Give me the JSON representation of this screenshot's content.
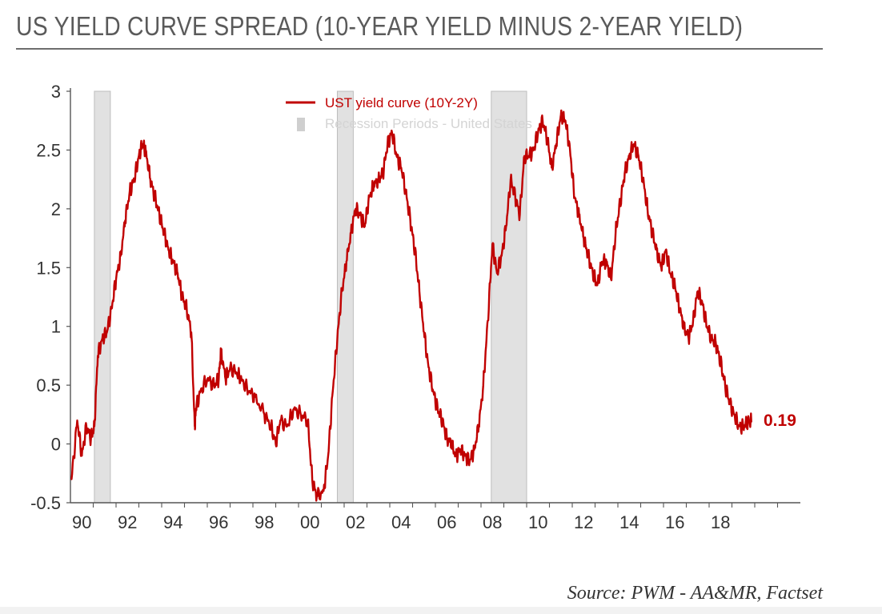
{
  "title": "US YIELD CURVE SPREAD (10-YEAR YIELD MINUS 2-YEAR YIELD)",
  "source": "Source: PWM - AA&MR, Factset",
  "colors": {
    "line": "#c00000",
    "recession": "#e1e1e1",
    "axis": "#555555",
    "text": "#333333"
  },
  "chart_data": {
    "type": "line",
    "title": "US YIELD CURVE SPREAD (10-YEAR YIELD MINUS 2-YEAR YIELD)",
    "xlabel": "",
    "ylabel": "",
    "xlim": [
      1989.5,
      2021.5
    ],
    "ylim": [
      -0.5,
      3
    ],
    "yticks": [
      -0.5,
      0,
      0.5,
      1,
      1.5,
      2,
      2.5,
      3
    ],
    "ytick_labels": [
      "-0.5",
      "0",
      "0.5",
      "1",
      "1.5",
      "2",
      "2.5",
      "3"
    ],
    "xticks": [
      1990,
      1992,
      1994,
      1996,
      1998,
      2000,
      2002,
      2004,
      2006,
      2008,
      2010,
      2012,
      2014,
      2016,
      2018
    ],
    "xtick_labels": [
      "90",
      "92",
      "94",
      "96",
      "98",
      "00",
      "02",
      "04",
      "06",
      "08",
      "10",
      "12",
      "14",
      "16",
      "18"
    ],
    "legend": {
      "position": "top-center",
      "entries": [
        {
          "label": "UST yield curve (10Y-2Y)",
          "kind": "line"
        },
        {
          "label": "Recession Periods - United States",
          "kind": "bar"
        }
      ]
    },
    "recessions": [
      {
        "start": 1990.55,
        "end": 1991.25
      },
      {
        "start": 2001.2,
        "end": 2001.9
      },
      {
        "start": 2007.95,
        "end": 2009.5
      }
    ],
    "series": [
      {
        "name": "UST yield curve (10Y-2Y)",
        "x": [
          1989.55,
          1989.8,
          1990.0,
          1990.2,
          1990.4,
          1990.55,
          1990.7,
          1990.9,
          1991.1,
          1991.3,
          1991.5,
          1991.7,
          1991.9,
          1992.1,
          1992.3,
          1992.5,
          1992.65,
          1992.8,
          1993.0,
          1993.2,
          1993.4,
          1993.6,
          1993.8,
          1994.0,
          1994.2,
          1994.4,
          1994.6,
          1994.8,
          1994.95,
          1995.0,
          1995.2,
          1995.5,
          1995.8,
          1996.0,
          1996.1,
          1996.3,
          1996.5,
          1996.8,
          1997.0,
          1997.3,
          1997.6,
          1998.0,
          1998.3,
          1998.5,
          1998.7,
          1999.0,
          1999.3,
          1999.6,
          1999.9,
          2000.1,
          2000.3,
          2000.6,
          2000.8,
          2001.0,
          2001.2,
          2001.4,
          2001.6,
          2001.8,
          2002.0,
          2002.2,
          2002.4,
          2002.6,
          2002.8,
          2003.0,
          2003.2,
          2003.4,
          2003.6,
          2003.8,
          2004.0,
          2004.2,
          2004.4,
          2004.6,
          2004.8,
          2005.0,
          2005.2,
          2005.4,
          2005.6,
          2005.8,
          2006.0,
          2006.2,
          2006.4,
          2006.6,
          2006.8,
          2007.0,
          2007.2,
          2007.4,
          2007.6,
          2007.8,
          2008.0,
          2008.2,
          2008.4,
          2008.6,
          2008.8,
          2009.0,
          2009.2,
          2009.4,
          2009.6,
          2009.8,
          2010.0,
          2010.2,
          2010.4,
          2010.6,
          2010.8,
          2011.0,
          2011.2,
          2011.4,
          2011.6,
          2011.8,
          2012.0,
          2012.2,
          2012.4,
          2012.6,
          2012.8,
          2013.0,
          2013.2,
          2013.4,
          2013.6,
          2013.8,
          2014.0,
          2014.2,
          2014.4,
          2014.6,
          2014.8,
          2015.0,
          2015.2,
          2015.4,
          2015.6,
          2015.8,
          2016.0,
          2016.2,
          2016.4,
          2016.6,
          2016.8,
          2017.0,
          2017.2,
          2017.4,
          2017.6,
          2017.8,
          2018.0,
          2018.2,
          2018.4,
          2018.6,
          2018.8,
          2019.0,
          2019.2,
          2019.35
        ],
        "y": [
          -0.3,
          0.2,
          -0.1,
          0.15,
          0.05,
          0.15,
          0.75,
          0.9,
          0.95,
          1.15,
          1.4,
          1.6,
          1.9,
          2.15,
          2.25,
          2.45,
          2.55,
          2.5,
          2.25,
          2.1,
          1.95,
          1.8,
          1.65,
          1.55,
          1.45,
          1.25,
          1.15,
          0.95,
          0.15,
          0.3,
          0.45,
          0.55,
          0.5,
          0.55,
          0.8,
          0.55,
          0.65,
          0.6,
          0.55,
          0.45,
          0.4,
          0.25,
          0.15,
          0.0,
          0.2,
          0.15,
          0.3,
          0.25,
          0.2,
          -0.3,
          -0.45,
          -0.4,
          -0.1,
          0.45,
          0.9,
          1.3,
          1.55,
          1.8,
          2.0,
          1.95,
          1.85,
          2.1,
          2.2,
          2.25,
          2.3,
          2.55,
          2.65,
          2.45,
          2.35,
          2.15,
          1.9,
          1.65,
          1.3,
          0.95,
          0.65,
          0.45,
          0.3,
          0.2,
          0.05,
          0.0,
          -0.1,
          -0.05,
          -0.1,
          -0.15,
          -0.05,
          0.15,
          0.5,
          1.05,
          1.7,
          1.45,
          1.6,
          1.85,
          2.25,
          2.1,
          1.95,
          2.45,
          2.45,
          2.5,
          2.65,
          2.75,
          2.6,
          2.35,
          2.55,
          2.8,
          2.75,
          2.5,
          2.1,
          1.95,
          1.75,
          1.6,
          1.45,
          1.35,
          1.55,
          1.55,
          1.4,
          1.8,
          2.05,
          2.3,
          2.45,
          2.55,
          2.45,
          2.25,
          2.0,
          1.8,
          1.65,
          1.5,
          1.65,
          1.45,
          1.35,
          1.15,
          1.0,
          0.9,
          1.05,
          1.3,
          1.2,
          1.0,
          0.9,
          0.85,
          0.7,
          0.5,
          0.35,
          0.25,
          0.15,
          0.15,
          0.19,
          0.19
        ]
      }
    ],
    "annotations": [
      {
        "text": "0.19",
        "x": 2019.35,
        "y": 0.19
      }
    ]
  }
}
